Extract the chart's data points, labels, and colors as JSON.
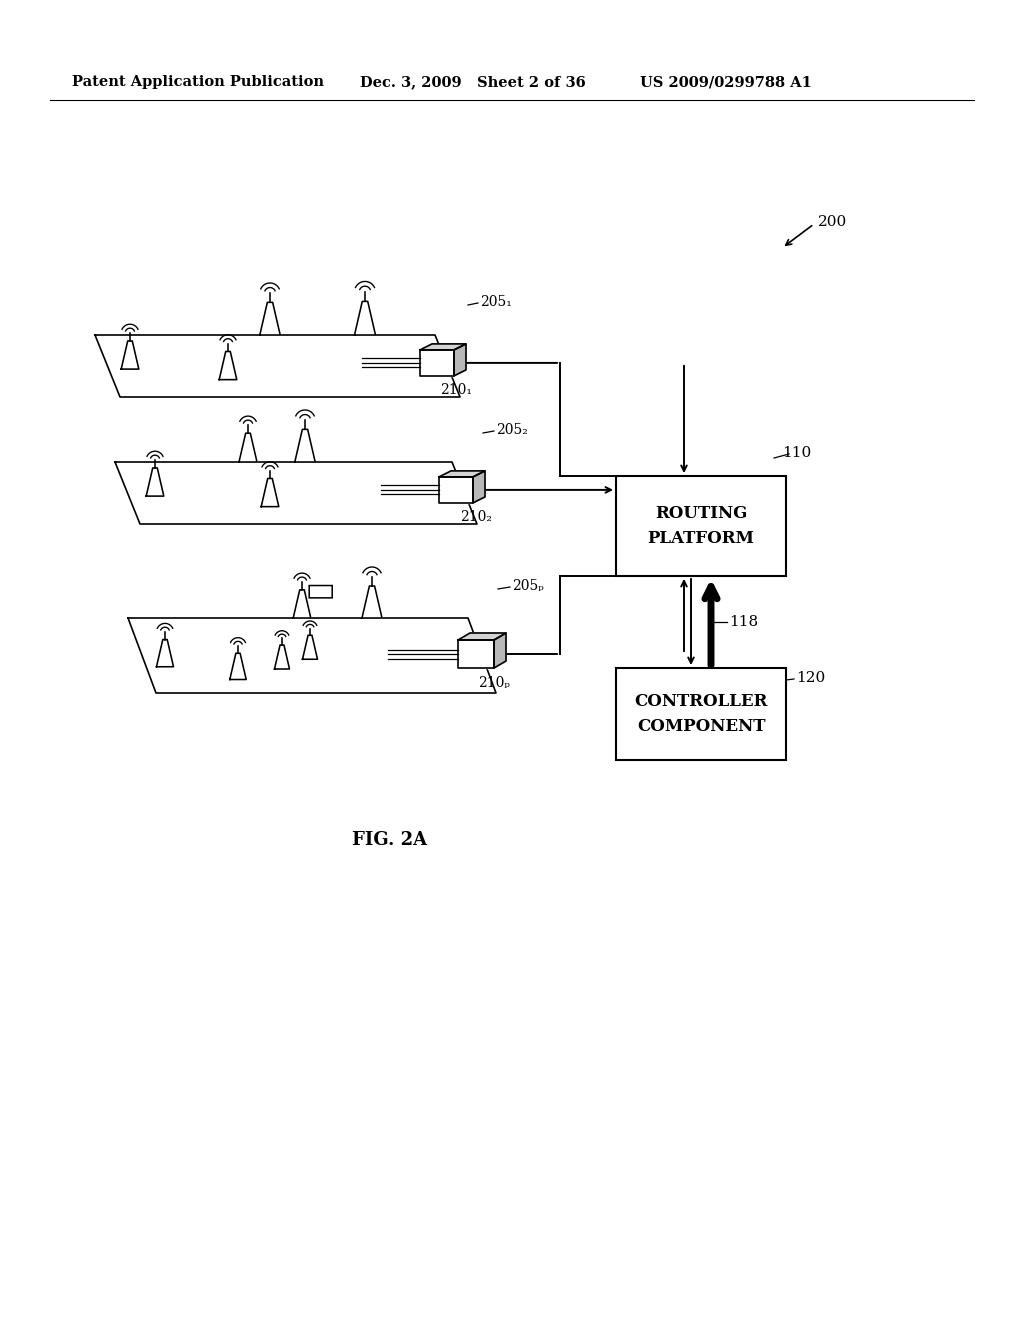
{
  "bg_color": "#ffffff",
  "header_left": "Patent Application Publication",
  "header_mid": "Dec. 3, 2009   Sheet 2 of 36",
  "header_right": "US 2009/0299788 A1",
  "fig_label": "FIG. 2A",
  "ref_200": "200",
  "ref_110": "110",
  "ref_118": "118",
  "ref_120": "120",
  "routing_label": "ROUTING\nPLATFORM",
  "controller_label": "CONTROLLER\nCOMPONENT",
  "floor_refs": [
    "205₁",
    "205₂",
    "205ₚ"
  ],
  "hub_refs": [
    "210₁",
    "210₂",
    "210ₚ"
  ]
}
